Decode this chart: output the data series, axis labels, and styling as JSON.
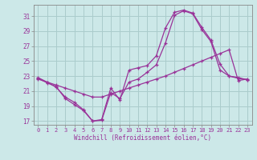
{
  "bg_color": "#cce8e8",
  "grid_color": "#aacccc",
  "line_color": "#993399",
  "xlabel": "Windchill (Refroidissement éolien,°C)",
  "ylabel_ticks": [
    17,
    19,
    21,
    23,
    25,
    27,
    29,
    31
  ],
  "xticks": [
    0,
    1,
    2,
    3,
    4,
    5,
    6,
    7,
    8,
    9,
    10,
    11,
    12,
    13,
    14,
    15,
    16,
    17,
    18,
    19,
    20,
    21,
    22,
    23
  ],
  "xlim": [
    -0.5,
    23.5
  ],
  "ylim": [
    16.5,
    32.5
  ],
  "s1_x": [
    0,
    1,
    2,
    3,
    4,
    5,
    6,
    7,
    8,
    9,
    10,
    11,
    12,
    13,
    14,
    15,
    16,
    17,
    18,
    19,
    20,
    21,
    22,
    23
  ],
  "s1_y": [
    22.8,
    22.2,
    21.5,
    20.2,
    19.5,
    18.5,
    17.0,
    17.2,
    21.4,
    19.8,
    23.8,
    24.1,
    24.4,
    25.7,
    29.4,
    31.5,
    31.8,
    31.4,
    29.5,
    27.8,
    24.6,
    23.0,
    22.8,
    22.5
  ],
  "s2_x": [
    0,
    1,
    2,
    3,
    4,
    5,
    6,
    7,
    8,
    9,
    10,
    11,
    12,
    13,
    14,
    15,
    16,
    17,
    18,
    19,
    20,
    21,
    22,
    23
  ],
  "s2_y": [
    22.6,
    22.2,
    21.8,
    21.4,
    21.0,
    20.6,
    20.2,
    20.2,
    20.6,
    21.0,
    21.4,
    21.8,
    22.2,
    22.6,
    23.0,
    23.5,
    24.0,
    24.5,
    25.0,
    25.5,
    26.0,
    26.5,
    22.4,
    22.6
  ],
  "s3_x": [
    0,
    1,
    2,
    3,
    4,
    5,
    6,
    7,
    8,
    9,
    10,
    11,
    12,
    13,
    14,
    15,
    16,
    17,
    18,
    19,
    20,
    21,
    22,
    23
  ],
  "s3_y": [
    22.7,
    22.1,
    21.6,
    20.0,
    19.2,
    18.4,
    17.0,
    17.1,
    20.8,
    20.0,
    22.2,
    22.6,
    23.5,
    24.5,
    27.4,
    31.1,
    31.7,
    31.3,
    29.2,
    27.6,
    23.8,
    23.0,
    22.7,
    22.5
  ]
}
